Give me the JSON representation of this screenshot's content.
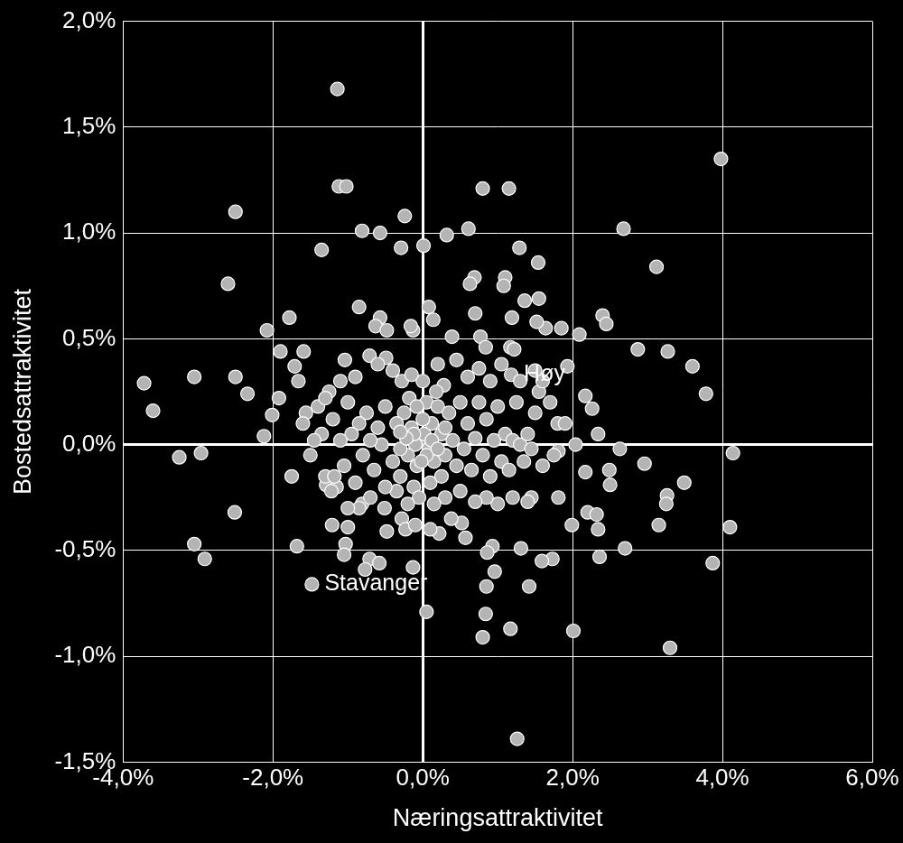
{
  "chart_data": {
    "type": "scatter",
    "x_label": "Næringsattraktivitet",
    "y_label": "Bostedsattraktivitet",
    "color": "#b4b4b4",
    "grid": true,
    "xlim": [
      -4.0,
      6.0
    ],
    "xticks": [
      {
        "value": -4.0,
        "label": "-4,0%"
      },
      {
        "value": -2.0,
        "label": "-2,0%"
      },
      {
        "value": 0.0,
        "label": "0,0%"
      },
      {
        "value": 2.0,
        "label": "2,0%"
      },
      {
        "value": 4.0,
        "label": "4,0%"
      },
      {
        "value": 6.0,
        "label": "6,0%"
      }
    ],
    "ylim": [
      -1.5,
      2.0
    ],
    "yticks": [
      {
        "value": -1.5,
        "label": "-1,5%"
      },
      {
        "value": -1.0,
        "label": "-1,0%"
      },
      {
        "value": -0.5,
        "label": "-0,5%"
      },
      {
        "value": 0.0,
        "label": "0,0%"
      },
      {
        "value": 0.5,
        "label": "0,5%"
      },
      {
        "value": 1.0,
        "label": "1,0%"
      },
      {
        "value": 1.5,
        "label": "1,5%"
      },
      {
        "value": 2.0,
        "label": "2,0%"
      }
    ],
    "annotations": [
      {
        "text": "Høy",
        "x": 1.18,
        "y": 0.33
      },
      {
        "text": "Stavanger",
        "x": -1.48,
        "y": -0.66
      }
    ],
    "x": [
      -1.14,
      3.98,
      -1.12,
      -1.02,
      0.8,
      1.15,
      -2.5,
      -0.24,
      0.61,
      0.32,
      0.01,
      -0.57,
      -0.81,
      2.68,
      -1.35,
      -0.29,
      1.29,
      1.54,
      3.12,
      -2.6,
      0.69,
      0.63,
      1.1,
      1.08,
      1.55,
      1.36,
      -0.85,
      0.08,
      0.7,
      1.19,
      -0.57,
      -0.63,
      0.14,
      -1.78,
      -2.08,
      2.4,
      2.45,
      1.85,
      1.64,
      2.09,
      1.52,
      -0.48,
      -0.13,
      -0.16,
      0.39,
      0.77,
      0.84,
      1.17,
      1.22,
      2.87,
      3.27,
      -1.9,
      -1.59,
      -1.04,
      -0.71,
      -0.49,
      3.6,
      -1.71,
      3.78,
      1.93,
      1.18,
      -3.72,
      -3.05,
      -2.5,
      -1.66,
      -2.34,
      -1.92,
      -3.6,
      -2.01,
      -2.12,
      -3.25,
      -2.96,
      -3.05,
      -2.91,
      -2.51,
      -1.75,
      -1.68,
      -1.48,
      4.14,
      4.1,
      3.87,
      3.49,
      3.26,
      3.25,
      3.15,
      3.3,
      2.96,
      2.63,
      2.34,
      2.26,
      2.17,
      2.49,
      2.5,
      2.17,
      2.2,
      2.32,
      2.34,
      2.36,
      2.7,
      2.04,
      1.99,
      2.01,
      1.81,
      1.81,
      1.73,
      1.59,
      1.42,
      1.31,
      0.93,
      0.86,
      0.96,
      0.85,
      0.84,
      0.8,
      1.17,
      0.05,
      1.26,
      -0.13,
      0.52,
      0.57,
      0.22,
      -1.03,
      -1.05,
      -0.71,
      -0.77,
      -0.58,
      -1.21,
      -1.0,
      -0.81,
      -0.51,
      -0.48,
      -0.28,
      -0.23,
      -1.29,
      -1.56,
      -0.05,
      0.02,
      -0.1,
      0.08,
      -0.15,
      0.12,
      -0.2,
      0.15,
      0.0,
      -0.08,
      0.05,
      -0.25,
      0.25,
      -0.3,
      0.3,
      0.2,
      -0.18,
      0.35,
      -0.35,
      0.4,
      -0.4,
      0.45,
      0.1,
      -0.12,
      0.28,
      -0.28,
      0.5,
      -0.5,
      0.55,
      -0.55,
      0.6,
      -0.6,
      0.65,
      -0.65,
      0.7,
      -0.7,
      0.75,
      -0.75,
      0.8,
      -0.8,
      0.85,
      -0.85,
      0.9,
      -0.9,
      0.95,
      -0.95,
      1.0,
      -1.0,
      1.05,
      -1.05,
      1.1,
      -1.1,
      1.15,
      -1.15,
      1.2,
      -1.2,
      1.25,
      -1.25,
      1.3,
      -1.3,
      1.35,
      -1.35,
      1.4,
      -1.4,
      1.45,
      -1.45,
      1.5,
      1.55,
      1.45,
      1.4,
      1.2,
      1.0,
      0.85,
      0.7,
      0.5,
      0.3,
      0.15,
      -0.05,
      -0.2,
      -0.35,
      -0.5,
      -0.7,
      -0.85,
      -1.0,
      -1.18,
      -1.22,
      0.6,
      0.9,
      1.05,
      -0.4,
      -0.6,
      -0.9,
      -1.1,
      0.2,
      0.0,
      -0.15,
      0.45,
      0.75,
      1.3,
      1.5,
      1.8,
      1.9,
      1.7,
      1.6,
      1.75,
      1.6,
      -1.6,
      -1.5,
      -1.3,
      0.38,
      0.1,
      -0.1,
      0.25,
      -0.3,
      0.05,
      -0.02,
      0.12,
      -0.12,
      0.2,
      -0.22,
      0.3,
      -0.3,
      0.18,
      -0.08
    ],
    "values": [
      1.68,
      1.35,
      1.22,
      1.22,
      1.21,
      1.21,
      1.1,
      1.08,
      1.02,
      0.99,
      0.94,
      1.0,
      1.01,
      1.02,
      0.92,
      0.93,
      0.93,
      0.86,
      0.84,
      0.76,
      0.79,
      0.76,
      0.79,
      0.75,
      0.69,
      0.68,
      0.65,
      0.65,
      0.62,
      0.6,
      0.6,
      0.56,
      0.59,
      0.6,
      0.54,
      0.61,
      0.57,
      0.55,
      0.55,
      0.52,
      0.58,
      0.54,
      0.54,
      0.56,
      0.51,
      0.51,
      0.46,
      0.46,
      0.45,
      0.45,
      0.44,
      0.44,
      0.44,
      0.4,
      0.42,
      0.41,
      0.37,
      0.37,
      0.24,
      0.37,
      0.33,
      0.29,
      0.32,
      0.32,
      0.3,
      0.24,
      0.22,
      0.16,
      0.14,
      0.04,
      -0.06,
      -0.04,
      -0.47,
      -0.54,
      -0.32,
      -0.15,
      -0.48,
      -0.66,
      -0.04,
      -0.39,
      -0.56,
      -0.18,
      -0.24,
      -0.28,
      -0.38,
      -0.96,
      -0.09,
      -0.02,
      0.05,
      0.17,
      0.23,
      -0.12,
      -0.19,
      -0.13,
      -0.32,
      -0.33,
      -0.4,
      -0.53,
      -0.49,
      0.0,
      -0.38,
      -0.88,
      -0.03,
      -0.25,
      -0.54,
      -0.55,
      -0.67,
      -0.49,
      -0.48,
      -0.51,
      -0.6,
      -0.67,
      -0.8,
      -0.91,
      -0.87,
      -0.79,
      -1.39,
      -0.58,
      -0.37,
      -0.44,
      -0.42,
      -0.47,
      -0.52,
      -0.54,
      -0.59,
      -0.56,
      -0.38,
      -0.39,
      -0.28,
      -0.3,
      -0.41,
      -0.35,
      -0.4,
      -0.19,
      0.15,
      0.02,
      0.05,
      0.0,
      -0.02,
      0.08,
      0.1,
      -0.05,
      -0.08,
      0.12,
      -0.1,
      0.2,
      0.15,
      0.05,
      -0.02,
      -0.05,
      0.18,
      0.22,
      0.15,
      0.1,
      0.02,
      -0.08,
      -0.1,
      -0.18,
      -0.2,
      0.28,
      0.3,
      0.2,
      0.18,
      -0.02,
      0.0,
      0.1,
      0.08,
      -0.12,
      -0.12,
      0.03,
      0.02,
      0.2,
      0.15,
      -0.05,
      -0.05,
      0.12,
      0.1,
      -0.15,
      -0.18,
      0.02,
      0.05,
      0.18,
      0.2,
      -0.08,
      -0.1,
      0.05,
      0.02,
      -0.12,
      -0.2,
      0.02,
      0.12,
      0.2,
      0.25,
      0.0,
      -0.15,
      -0.08,
      0.05,
      0.05,
      0.18,
      -0.02,
      0.02,
      0.15,
      0.25,
      -0.25,
      -0.27,
      -0.25,
      -0.28,
      -0.25,
      -0.27,
      -0.22,
      -0.25,
      -0.28,
      -0.25,
      -0.28,
      -0.22,
      -0.2,
      -0.25,
      -0.3,
      -0.3,
      -0.15,
      -0.22,
      0.32,
      0.3,
      0.38,
      0.35,
      0.38,
      0.32,
      0.3,
      0.38,
      0.3,
      0.33,
      0.4,
      0.36,
      0.3,
      0.35,
      0.1,
      0.1,
      0.2,
      0.3,
      -0.05,
      -0.1,
      0.1,
      -0.05,
      0.22,
      -0.35,
      -0.4,
      -0.38,
      -0.15,
      -0.15,
      -0.05,
      -0.08,
      0.02,
      0.05,
      -0.02,
      0.03,
      0.08,
      0.06,
      0.25,
      0.18
    ]
  }
}
